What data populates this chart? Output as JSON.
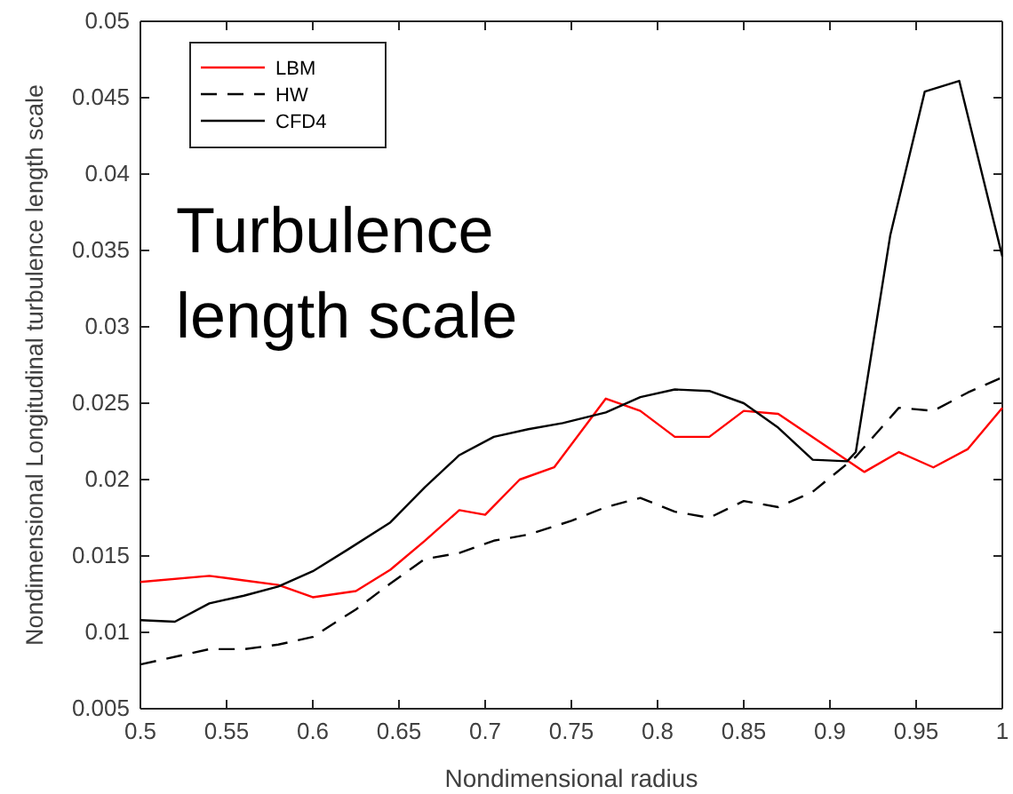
{
  "chart_data": {
    "type": "line",
    "xlabel": "Nondimensional radius",
    "ylabel": "Nondimensional Longitudinal turbulence length scale",
    "annotations": [
      "Turbulence length scale"
    ],
    "xlim": [
      0.5,
      1
    ],
    "xticks": [
      0.5,
      0.55,
      0.6,
      0.65,
      0.7,
      0.75,
      0.8,
      0.85,
      0.9,
      0.95,
      1
    ],
    "ylim": [
      0.005,
      0.05
    ],
    "yticks": [
      0.005,
      0.01,
      0.015,
      0.02,
      0.025,
      0.03,
      0.035,
      0.04,
      0.045,
      0.05
    ],
    "legend": "top left",
    "grid": false,
    "series": [
      {
        "name": "LBM",
        "color": "#ff0000",
        "line_style": "solid",
        "x": [
          0.5,
          0.54,
          0.56,
          0.58,
          0.6,
          0.625,
          0.645,
          0.665,
          0.685,
          0.7,
          0.72,
          0.74,
          0.77,
          0.79,
          0.81,
          0.83,
          0.85,
          0.87,
          0.895,
          0.92,
          0.94,
          0.96,
          0.98,
          1.0
        ],
        "values": [
          0.0133,
          0.0137,
          0.0134,
          0.0131,
          0.0123,
          0.0127,
          0.0141,
          0.016,
          0.018,
          0.0177,
          0.02,
          0.0208,
          0.0253,
          0.0245,
          0.0228,
          0.0228,
          0.0245,
          0.0243,
          0.0224,
          0.0205,
          0.0218,
          0.0208,
          0.022,
          0.0247
        ]
      },
      {
        "name": "HW",
        "color": "#000000",
        "line_style": "dashed",
        "x": [
          0.5,
          0.54,
          0.56,
          0.58,
          0.6,
          0.625,
          0.645,
          0.665,
          0.685,
          0.705,
          0.725,
          0.75,
          0.77,
          0.79,
          0.81,
          0.83,
          0.85,
          0.87,
          0.89,
          0.915,
          0.94,
          0.96,
          0.98,
          1.0
        ],
        "values": [
          0.0079,
          0.0089,
          0.0089,
          0.0092,
          0.0097,
          0.0115,
          0.0132,
          0.0148,
          0.0152,
          0.016,
          0.0164,
          0.0173,
          0.0182,
          0.0188,
          0.0179,
          0.0175,
          0.0186,
          0.0182,
          0.0192,
          0.0215,
          0.0247,
          0.0245,
          0.0257,
          0.0267
        ]
      },
      {
        "name": "CFD4",
        "color": "#000000",
        "line_style": "solid",
        "x": [
          0.5,
          0.52,
          0.54,
          0.56,
          0.58,
          0.6,
          0.62,
          0.645,
          0.665,
          0.685,
          0.705,
          0.725,
          0.745,
          0.77,
          0.79,
          0.81,
          0.83,
          0.85,
          0.87,
          0.89,
          0.91,
          0.915,
          0.935,
          0.955,
          0.975,
          1.0
        ],
        "values": [
          0.0108,
          0.0107,
          0.0119,
          0.0124,
          0.013,
          0.014,
          0.0154,
          0.0172,
          0.0195,
          0.0216,
          0.0228,
          0.0233,
          0.0237,
          0.0244,
          0.0254,
          0.0259,
          0.0258,
          0.025,
          0.0234,
          0.0213,
          0.0212,
          0.0218,
          0.036,
          0.0454,
          0.0461,
          0.0346
        ]
      }
    ]
  }
}
